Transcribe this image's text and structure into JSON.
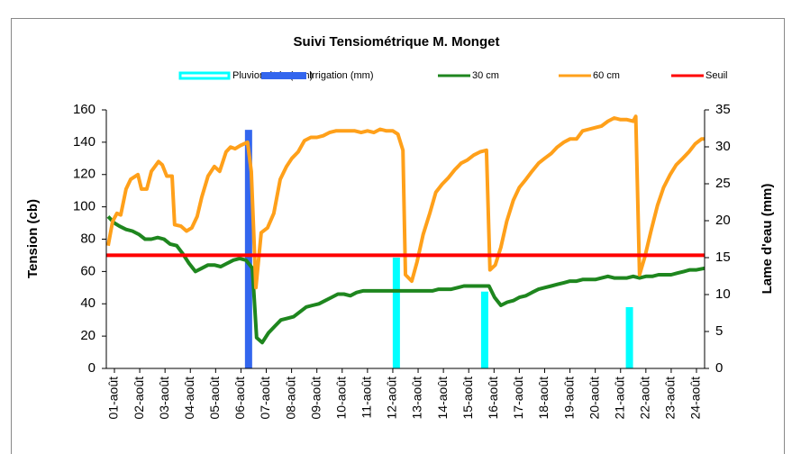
{
  "chart_data": {
    "type": "combo",
    "title": "Suivi Tensiométrique M. Monget",
    "ylabel": "Tension (cb)",
    "y2label": "Lame d'eau (mm)",
    "xlim": [
      0.68,
      24.32
    ],
    "xticks": [
      {
        "value": 1,
        "label": "01-août"
      },
      {
        "value": 2,
        "label": "02-août"
      },
      {
        "value": 3,
        "label": "03-août"
      },
      {
        "value": 4,
        "label": "04-août"
      },
      {
        "value": 5,
        "label": "05-août"
      },
      {
        "value": 6,
        "label": "06-août"
      },
      {
        "value": 7,
        "label": "07-août"
      },
      {
        "value": 8,
        "label": "08-août"
      },
      {
        "value": 9,
        "label": "09-août"
      },
      {
        "value": 10,
        "label": "10-août"
      },
      {
        "value": 11,
        "label": "11-août"
      },
      {
        "value": 12,
        "label": "12-août"
      },
      {
        "value": 13,
        "label": "13-août"
      },
      {
        "value": 14,
        "label": "14-août"
      },
      {
        "value": 15,
        "label": "15-août"
      },
      {
        "value": 16,
        "label": "16-août"
      },
      {
        "value": 17,
        "label": "17-août"
      },
      {
        "value": 18,
        "label": "18-août"
      },
      {
        "value": 19,
        "label": "19-août"
      },
      {
        "value": 20,
        "label": "20-août"
      },
      {
        "value": 21,
        "label": "21-août"
      },
      {
        "value": 22,
        "label": "22-août"
      },
      {
        "value": 23,
        "label": "23-août"
      },
      {
        "value": 24,
        "label": "24-août"
      }
    ],
    "ylim": [
      0,
      160
    ],
    "yticks": [
      0,
      20,
      40,
      60,
      80,
      100,
      120,
      140,
      160
    ],
    "y2lim": [
      0,
      35
    ],
    "y2ticks": [
      0,
      5,
      10,
      15,
      20,
      25,
      30,
      35
    ],
    "series": [
      {
        "name": "Pluviométrie (mm)",
        "type": "bar",
        "axis": "y2",
        "color": "#00ffff",
        "x": [
          12.14,
          15.63,
          21.35
        ],
        "values": [
          15.0,
          10.4,
          8.3
        ]
      },
      {
        "name": "Irrigation (mm)",
        "type": "bar",
        "axis": "y2",
        "color": "#3366ee",
        "x": [
          6.3
        ],
        "values": [
          32.3
        ]
      },
      {
        "name": "30 cm",
        "type": "line",
        "color": "#1e861e",
        "x": [
          0.75,
          1.0,
          1.2,
          1.46,
          1.71,
          1.96,
          2.21,
          2.46,
          2.71,
          2.96,
          3.2,
          3.46,
          3.7,
          3.95,
          4.2,
          4.45,
          4.7,
          4.95,
          5.2,
          5.45,
          5.7,
          5.95,
          6.2,
          6.45,
          6.62,
          6.84,
          7.09,
          7.33,
          7.58,
          7.83,
          8.08,
          8.33,
          8.58,
          8.83,
          9.08,
          9.33,
          9.58,
          9.83,
          10.07,
          10.32,
          10.57,
          10.82,
          11.07,
          11.32,
          11.57,
          11.82,
          12.07,
          12.32,
          12.57,
          12.82,
          13.06,
          13.31,
          13.56,
          13.81,
          14.06,
          14.31,
          14.56,
          14.81,
          15.06,
          15.31,
          15.56,
          15.8,
          16.02,
          16.27,
          16.52,
          16.76,
          17.0,
          17.26,
          17.5,
          17.76,
          18.0,
          18.26,
          18.5,
          18.76,
          19.0,
          19.26,
          19.5,
          19.75,
          20.0,
          20.25,
          20.5,
          20.75,
          21.0,
          21.25,
          21.5,
          21.75,
          22.0,
          22.25,
          22.5,
          22.74,
          23.0,
          23.24,
          23.5,
          23.74,
          24.0,
          24.32
        ],
        "values": [
          94,
          90,
          88,
          86,
          85,
          83,
          80,
          80,
          81,
          80,
          77,
          76,
          71,
          65,
          60,
          62,
          64,
          64,
          63,
          65,
          67,
          68,
          67,
          62,
          19,
          16,
          22,
          26,
          30,
          31,
          32,
          35,
          38,
          39,
          40,
          42,
          44,
          46,
          46,
          45,
          47,
          48,
          48,
          48,
          48,
          48,
          48,
          48,
          48,
          48,
          48,
          48,
          48,
          49,
          49,
          49,
          50,
          51,
          51,
          51,
          51,
          51,
          44,
          39,
          41,
          42,
          44,
          45,
          47,
          49,
          50,
          51,
          52,
          53,
          54,
          54,
          55,
          55,
          55,
          56,
          57,
          56,
          56,
          56,
          57,
          56,
          57,
          57,
          58,
          58,
          58,
          59,
          60,
          61,
          61,
          62
        ]
      },
      {
        "name": "60 cm",
        "type": "line",
        "color": "#ffa01a",
        "x": [
          0.75,
          0.93,
          1.1,
          1.25,
          1.46,
          1.64,
          1.93,
          2.07,
          2.28,
          2.46,
          2.74,
          2.89,
          3.07,
          3.28,
          3.38,
          3.63,
          3.85,
          4.06,
          4.27,
          4.45,
          4.7,
          4.95,
          5.16,
          5.41,
          5.59,
          5.77,
          5.98,
          6.26,
          6.41,
          6.59,
          6.8,
          7.05,
          7.3,
          7.55,
          7.8,
          8.01,
          8.26,
          8.51,
          8.76,
          9.0,
          9.25,
          9.5,
          9.75,
          10.0,
          10.25,
          10.5,
          10.75,
          11.0,
          11.25,
          11.5,
          11.75,
          12.0,
          12.2,
          12.4,
          12.5,
          12.75,
          12.96,
          13.2,
          13.46,
          13.7,
          13.95,
          14.2,
          14.45,
          14.7,
          14.95,
          15.2,
          15.45,
          15.7,
          15.84,
          16.05,
          16.27,
          16.5,
          16.76,
          17.0,
          17.26,
          17.5,
          17.76,
          18.0,
          18.26,
          18.5,
          18.76,
          19.0,
          19.26,
          19.5,
          19.75,
          20.0,
          20.25,
          20.5,
          20.75,
          21.0,
          21.25,
          21.5,
          21.6,
          21.75,
          21.96,
          22.2,
          22.46,
          22.7,
          22.96,
          23.2,
          23.46,
          23.7,
          23.95,
          24.2,
          24.32
        ],
        "values": [
          76,
          91,
          96,
          95,
          111,
          117,
          120,
          111,
          111,
          122,
          128,
          126,
          119,
          119,
          89,
          88,
          85,
          87,
          94,
          106,
          119,
          125,
          122,
          134,
          137,
          136,
          138,
          140,
          122,
          50,
          84,
          87,
          96,
          117,
          125,
          130,
          134,
          141,
          143,
          143,
          144,
          146,
          147,
          147,
          147,
          147,
          146,
          147,
          146,
          148,
          147,
          147,
          145,
          135,
          58,
          54,
          66,
          83,
          96,
          109,
          114,
          118,
          123,
          127,
          129,
          132,
          134,
          135,
          61,
          64,
          75,
          91,
          104,
          112,
          117,
          122,
          127,
          130,
          133,
          137,
          140,
          142,
          142,
          147,
          148,
          149,
          150,
          153,
          155,
          154,
          154,
          153,
          156,
          58,
          69,
          85,
          101,
          112,
          120,
          126,
          130,
          134,
          139,
          142,
          142
        ]
      },
      {
        "name": "Seuil",
        "type": "line",
        "color": "#ff0000",
        "x": [
          0.68,
          24.32
        ],
        "values": [
          70,
          70
        ]
      }
    ]
  }
}
